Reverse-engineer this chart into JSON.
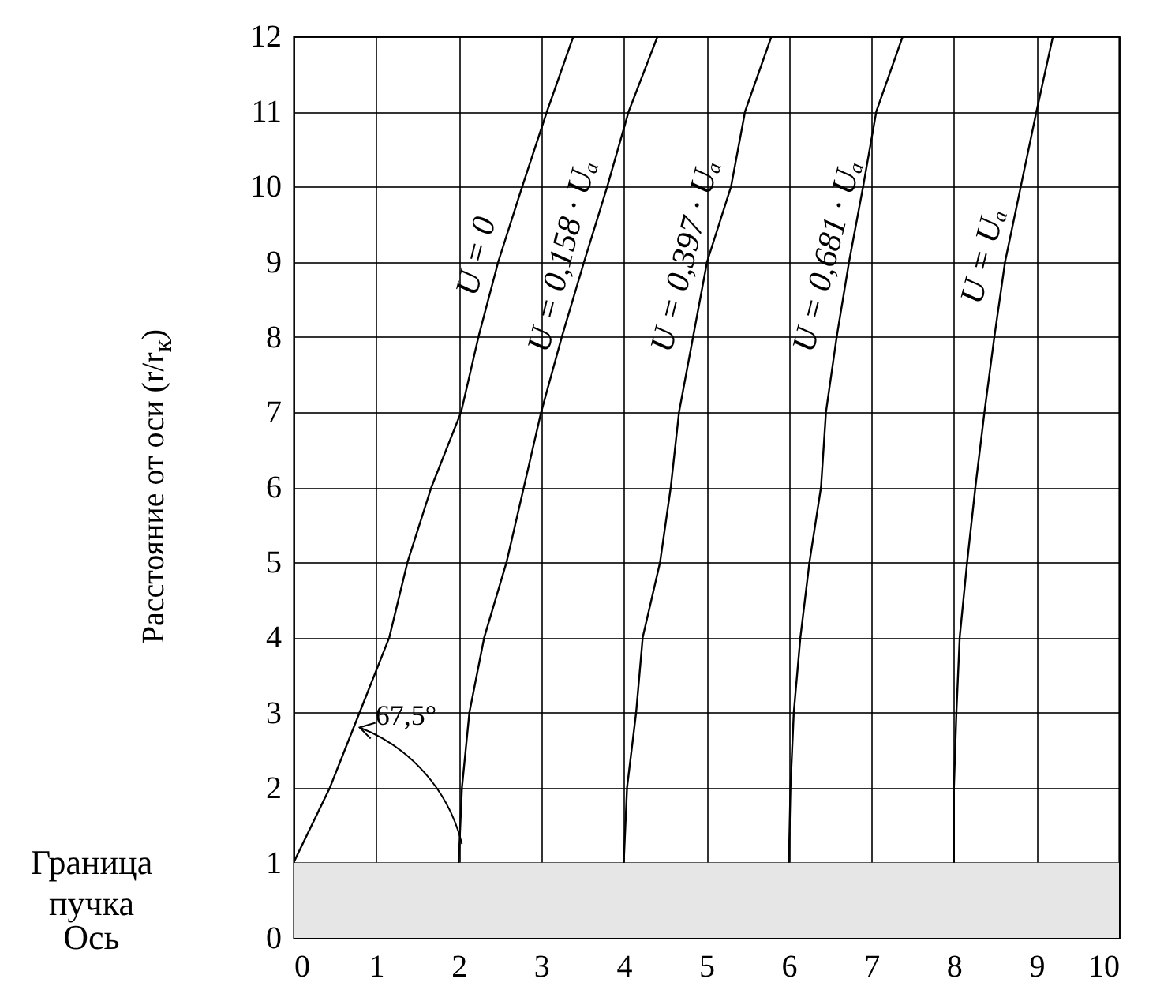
{
  "chart_data": {
    "type": "line",
    "ylabel": "Расстояние от оси (r/r$_{к}$)",
    "xlim": [
      0,
      10
    ],
    "ylim": [
      0,
      12
    ],
    "xticks": [
      0,
      1,
      2,
      3,
      4,
      5,
      6,
      7,
      8,
      9,
      10
    ],
    "yticks": [
      0,
      1,
      2,
      3,
      4,
      5,
      6,
      7,
      8,
      9,
      10,
      11,
      12
    ],
    "grid": true,
    "legend": false,
    "marker": "none",
    "line_style": "solid",
    "series": [
      {
        "name": "U = 0",
        "color": "#000000",
        "x": [
          0,
          0.44,
          0.8,
          1.16,
          1.38,
          1.67,
          2.03,
          2.24,
          2.48,
          2.77,
          3.07,
          3.39
        ],
        "values": [
          1,
          2,
          3,
          4,
          5,
          6,
          7,
          8,
          9,
          10,
          11,
          12
        ]
      },
      {
        "name": "U = 0,158 · Uₐ",
        "color": "#000000",
        "x": [
          2,
          2.04,
          2.13,
          2.31,
          2.58,
          2.79,
          3.0,
          3.25,
          3.52,
          3.8,
          4.06,
          4.41
        ],
        "values": [
          1,
          2,
          3,
          4,
          5,
          6,
          7,
          8,
          9,
          10,
          11,
          12
        ]
      },
      {
        "name": "U = 0,397 · Uₐ",
        "color": "#000000",
        "x": [
          4,
          4.04,
          4.15,
          4.23,
          4.44,
          4.57,
          4.67,
          4.84,
          5.01,
          5.3,
          5.47,
          5.79
        ],
        "values": [
          1,
          2,
          3,
          4,
          5,
          6,
          7,
          8,
          9,
          10,
          11,
          12
        ]
      },
      {
        "name": "U = 0,681 · Uₐ",
        "color": "#000000",
        "x": [
          6,
          6.02,
          6.06,
          6.14,
          6.25,
          6.39,
          6.45,
          6.58,
          6.73,
          6.9,
          7.06,
          7.38
        ],
        "values": [
          1,
          2,
          3,
          4,
          5,
          6,
          7,
          8,
          9,
          10,
          11,
          12
        ]
      },
      {
        "name": "U = Uₐ",
        "color": "#000000",
        "x": [
          8,
          8,
          8.03,
          8.07,
          8.16,
          8.26,
          8.37,
          8.49,
          8.62,
          8.81,
          9.0,
          9.2
        ],
        "values": [
          1,
          2,
          3,
          4,
          5,
          6,
          7,
          8,
          9,
          10,
          11,
          12
        ]
      }
    ],
    "bands": [
      {
        "axis": "y",
        "from": 0,
        "to": 1,
        "color": "#e6e6e6"
      }
    ],
    "annotations": [
      {
        "text": "67,5°",
        "x": 0.8,
        "y": 2.8
      },
      "Граница пучка",
      "Ось"
    ]
  }
}
